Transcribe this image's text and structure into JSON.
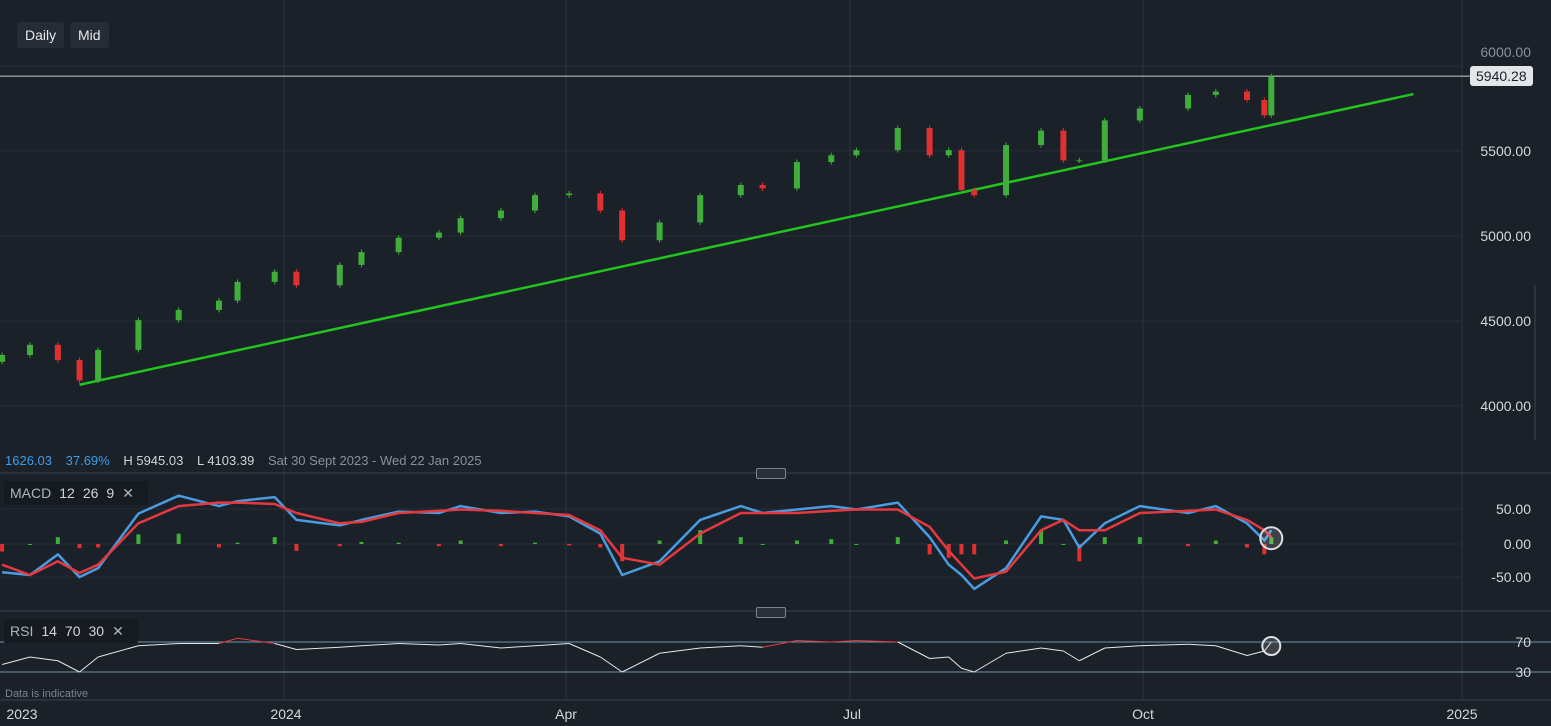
{
  "toolbar": {
    "interval": "Daily",
    "price_type": "Mid"
  },
  "info": {
    "change": "1626.03",
    "change_pct": "37.69%",
    "high": "H 5945.03",
    "low": "L 4103.39",
    "range": "Sat 30 Sept 2023 - Wed 22 Jan 2025"
  },
  "last_price": "5940.28",
  "note": "Data is indicative",
  "colors": {
    "background": "#1b2129",
    "up": "#3fae3a",
    "down": "#e03030",
    "trendline": "#22c41e",
    "macd": "#4a9be0",
    "signal": "#e5393f",
    "rsi": "#e8e8e8"
  },
  "chart_data": {
    "type": "candlestick",
    "price_axis": {
      "ticks": [
        "6000.00",
        "5500.00",
        "5000.00",
        "4500.00",
        "4000.00"
      ],
      "ylim": [
        3700,
        6050
      ]
    },
    "time_axis": {
      "ticks": [
        "2023",
        "2024",
        "Apr",
        "Jul",
        "Oct",
        "2025"
      ]
    },
    "grid": true,
    "dates": [
      "2023-10-02",
      "2023-10-11",
      "2023-10-20",
      "2023-10-27",
      "2023-11-02",
      "2023-11-15",
      "2023-11-28",
      "2023-12-11",
      "2023-12-17",
      "2023-12-29",
      "2024-01-05",
      "2024-01-19",
      "2024-01-26",
      "2024-02-07",
      "2024-02-20",
      "2024-02-27",
      "2024-03-11",
      "2024-03-22",
      "2024-04-02",
      "2024-04-12",
      "2024-04-19",
      "2024-05-01",
      "2024-05-14",
      "2024-05-27",
      "2024-06-03",
      "2024-06-14",
      "2024-06-25",
      "2024-07-03",
      "2024-07-16",
      "2024-07-26",
      "2024-08-01",
      "2024-08-05",
      "2024-08-09",
      "2024-08-19",
      "2024-08-30",
      "2024-09-06",
      "2024-09-11",
      "2024-09-19",
      "2024-09-30",
      "2024-10-14",
      "2024-10-22",
      "2024-10-31",
      "2024-11-05",
      "2024-11-07"
    ],
    "close": [
      4300,
      4360,
      4270,
      4150,
      4330,
      4505,
      4565,
      4620,
      4730,
      4790,
      4710,
      4830,
      4905,
      4990,
      5020,
      5105,
      5150,
      5240,
      5250,
      5150,
      4975,
      5080,
      5240,
      5300,
      5280,
      5435,
      5475,
      5505,
      5635,
      5475,
      5505,
      5270,
      5240,
      5535,
      5620,
      5445,
      5445,
      5680,
      5750,
      5830,
      5850,
      5800,
      5710,
      5940
    ],
    "trendline": {
      "start": {
        "date": "2023-10-27",
        "price": 4125
      },
      "end": {
        "date": "2024-12-18",
        "price": 5835
      }
    },
    "horizontal_line": 5940.28,
    "macd": {
      "label": "MACD",
      "params": [
        "12",
        "26",
        "9"
      ],
      "ticks": [
        "50.00",
        "0.00",
        "-50.00"
      ],
      "ylim": [
        -75,
        90
      ],
      "macd": [
        -41,
        -45,
        -15,
        -48,
        -35,
        44,
        70,
        55,
        62,
        68,
        35,
        27,
        35,
        47,
        45,
        55,
        45,
        47,
        40,
        15,
        -45,
        -25,
        35,
        55,
        45,
        50,
        55,
        50,
        60,
        10,
        -30,
        -45,
        -65,
        -35,
        40,
        35,
        -5,
        30,
        55,
        45,
        55,
        30,
        5,
        20
      ],
      "signal": [
        -30,
        -45,
        -25,
        -42,
        -30,
        30,
        55,
        60,
        60,
        58,
        45,
        30,
        32,
        45,
        48,
        50,
        48,
        45,
        42,
        20,
        -20,
        -30,
        15,
        45,
        45,
        45,
        48,
        50,
        50,
        25,
        -10,
        -30,
        -50,
        -40,
        20,
        35,
        20,
        20,
        45,
        48,
        50,
        35,
        20,
        10
      ]
    },
    "rsi": {
      "label": "RSI",
      "params": [
        "14",
        "70",
        "30"
      ],
      "ticks": [
        "70",
        "30"
      ],
      "levels": [
        70,
        30
      ],
      "values": [
        40,
        50,
        45,
        30,
        50,
        65,
        68,
        68,
        75,
        68,
        60,
        63,
        65,
        68,
        66,
        68,
        62,
        65,
        68,
        50,
        30,
        55,
        62,
        65,
        63,
        72,
        70,
        72,
        70,
        48,
        50,
        35,
        30,
        55,
        62,
        58,
        45,
        62,
        65,
        67,
        65,
        52,
        58,
        70
      ]
    }
  }
}
